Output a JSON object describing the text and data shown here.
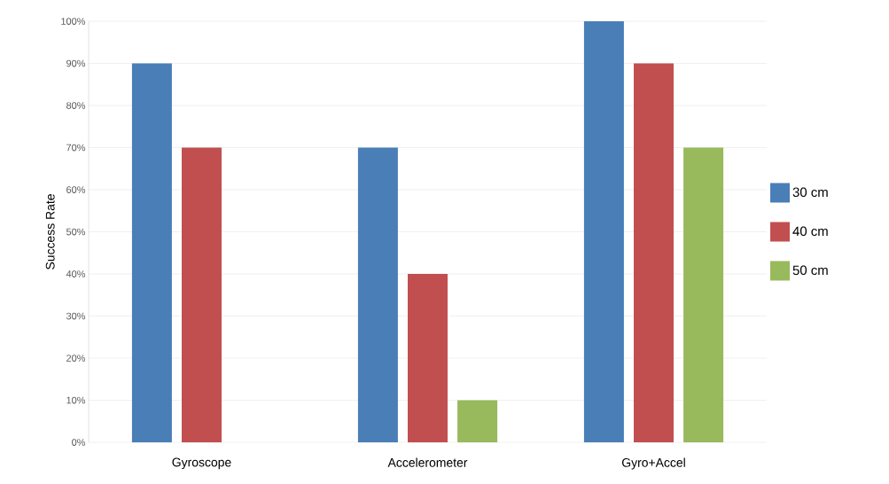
{
  "chart_data": {
    "type": "bar",
    "ylabel": "Success Rate",
    "categories": [
      "Gyroscope",
      "Accelerometer",
      "Gyro+Accel"
    ],
    "series": [
      {
        "name": "30 cm",
        "color": "#4a7eb7",
        "values": [
          90,
          70,
          100
        ]
      },
      {
        "name": "40 cm",
        "color": "#c24f4f",
        "values": [
          70,
          40,
          90
        ]
      },
      {
        "name": "50 cm",
        "color": "#98b95c",
        "values": [
          null,
          10,
          70
        ]
      }
    ],
    "ylim": [
      0,
      100
    ],
    "yticks": [
      {
        "value": 0,
        "label": "0%"
      },
      {
        "value": 10,
        "label": "10%"
      },
      {
        "value": 20,
        "label": "20%"
      },
      {
        "value": 30,
        "label": "30%"
      },
      {
        "value": 40,
        "label": "40%"
      },
      {
        "value": 50,
        "label": "50%"
      },
      {
        "value": 60,
        "label": "60%"
      },
      {
        "value": 70,
        "label": "70%"
      },
      {
        "value": 80,
        "label": "80%"
      },
      {
        "value": 90,
        "label": "90%"
      },
      {
        "value": 100,
        "label": "100%"
      }
    ],
    "grid": "y",
    "legend": "right"
  }
}
